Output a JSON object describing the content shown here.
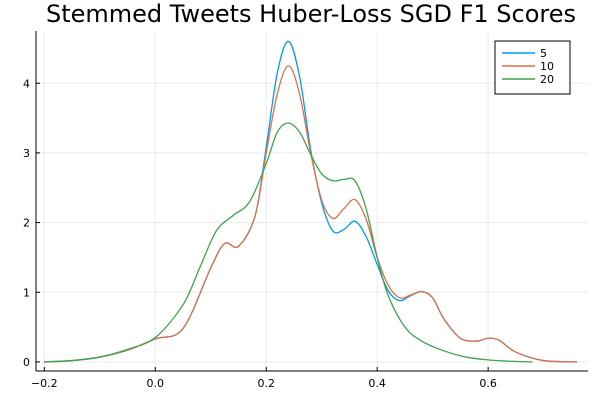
{
  "chart_data": {
    "type": "line",
    "title": "Stemmed Tweets Huber-Loss SGD F1 Scores",
    "xlabel": "",
    "ylabel": "",
    "xlim": [
      -0.215,
      0.78
    ],
    "ylim": [
      -0.13,
      4.75
    ],
    "xticks": [
      -0.2,
      0.0,
      0.2,
      0.4,
      0.6
    ],
    "xtick_labels": [
      "−0.2",
      "0.0",
      "0.2",
      "0.4",
      "0.6"
    ],
    "yticks": [
      0,
      1,
      2,
      3,
      4
    ],
    "ytick_labels": [
      "0",
      "1",
      "2",
      "3",
      "4"
    ],
    "grid": true,
    "legend_position": "top-right",
    "series": [
      {
        "name": "5",
        "color": "#009AFA",
        "x": [
          -0.2,
          -0.15,
          -0.1,
          -0.05,
          0.0,
          0.05,
          0.1,
          0.125,
          0.15,
          0.18,
          0.2,
          0.22,
          0.24,
          0.26,
          0.28,
          0.3,
          0.32,
          0.34,
          0.36,
          0.38,
          0.4,
          0.42,
          0.44,
          0.46,
          0.48,
          0.5,
          0.52,
          0.55,
          0.58,
          0.6,
          0.62,
          0.65,
          0.7,
          0.76
        ],
        "y": [
          0.0,
          0.02,
          0.07,
          0.17,
          0.33,
          0.48,
          1.35,
          1.7,
          1.66,
          2.1,
          3.08,
          4.15,
          4.6,
          4.1,
          3.05,
          2.28,
          1.88,
          1.9,
          2.02,
          1.8,
          1.4,
          1.02,
          0.88,
          0.95,
          1.01,
          0.92,
          0.62,
          0.34,
          0.3,
          0.34,
          0.31,
          0.14,
          0.02,
          0.0
        ]
      },
      {
        "name": "10",
        "color": "#E26F46",
        "x": [
          -0.2,
          -0.15,
          -0.1,
          -0.05,
          0.0,
          0.05,
          0.1,
          0.125,
          0.15,
          0.18,
          0.2,
          0.22,
          0.24,
          0.26,
          0.28,
          0.3,
          0.32,
          0.34,
          0.36,
          0.38,
          0.4,
          0.42,
          0.44,
          0.46,
          0.48,
          0.5,
          0.52,
          0.55,
          0.58,
          0.6,
          0.62,
          0.65,
          0.7,
          0.76
        ],
        "y": [
          0.0,
          0.02,
          0.07,
          0.17,
          0.33,
          0.48,
          1.35,
          1.7,
          1.66,
          2.1,
          3.0,
          3.85,
          4.25,
          3.85,
          3.0,
          2.32,
          2.06,
          2.2,
          2.33,
          2.05,
          1.5,
          1.1,
          0.92,
          0.96,
          1.01,
          0.92,
          0.62,
          0.34,
          0.3,
          0.34,
          0.31,
          0.14,
          0.02,
          0.0
        ]
      },
      {
        "name": "20",
        "color": "#3EA44E",
        "x": [
          -0.2,
          -0.15,
          -0.1,
          -0.05,
          0.0,
          0.05,
          0.08,
          0.11,
          0.14,
          0.17,
          0.2,
          0.22,
          0.24,
          0.26,
          0.28,
          0.3,
          0.32,
          0.34,
          0.36,
          0.38,
          0.4,
          0.42,
          0.45,
          0.48,
          0.52,
          0.56,
          0.6,
          0.64,
          0.68
        ],
        "y": [
          0.0,
          0.02,
          0.07,
          0.18,
          0.35,
          0.82,
          1.35,
          1.88,
          2.1,
          2.3,
          2.85,
          3.3,
          3.43,
          3.3,
          2.98,
          2.7,
          2.6,
          2.62,
          2.6,
          2.2,
          1.5,
          0.95,
          0.5,
          0.3,
          0.16,
          0.07,
          0.03,
          0.01,
          0.0
        ]
      }
    ]
  }
}
